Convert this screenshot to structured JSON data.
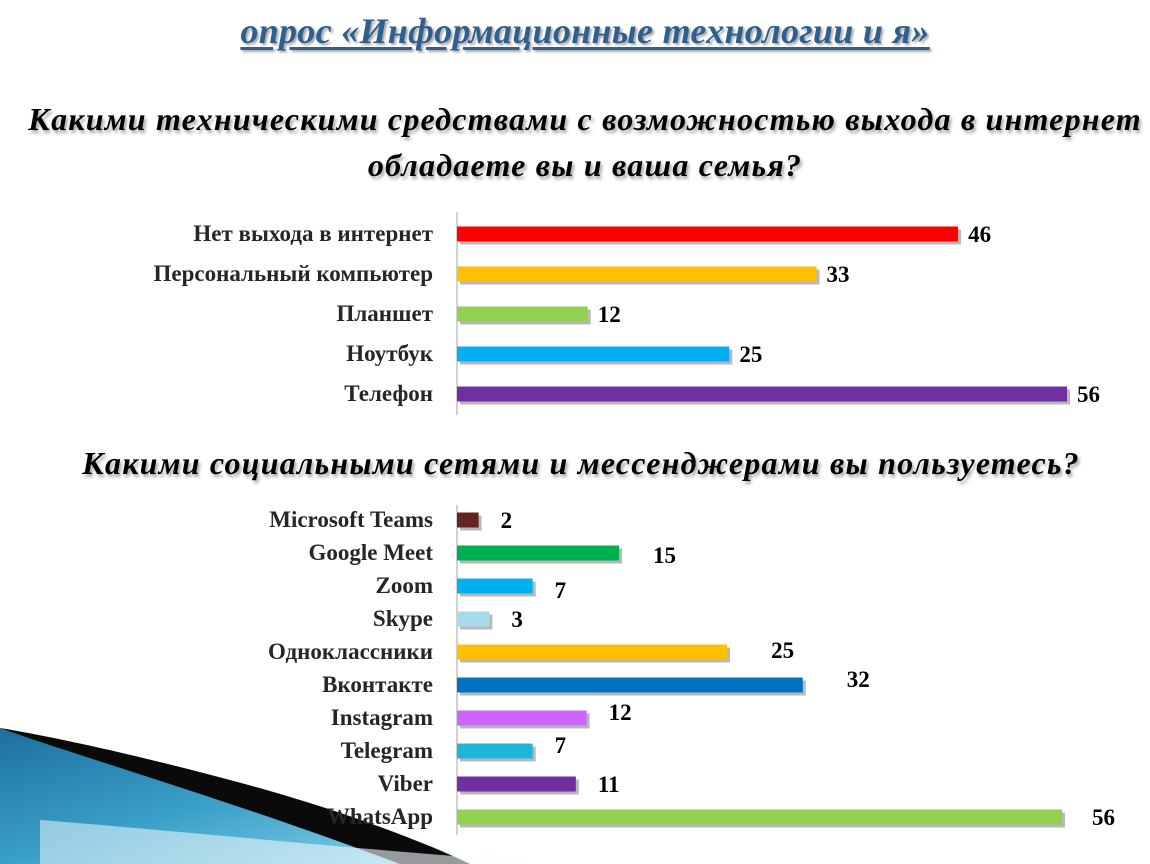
{
  "header": {
    "title": "опрос «Информационные технологии и я»",
    "question1": "Какими техническими средствами с возможностью выхода в интернет обладаете вы и ваша семья?",
    "question2": "Какими социальными сетями и мессенджерами вы пользуетесь?"
  },
  "chart_data": [
    {
      "type": "bar",
      "orientation": "horizontal",
      "categories": [
        "Нет выхода в интернет",
        "Персональный компьютер",
        "Планшет",
        "Ноутбук",
        "Телефон"
      ],
      "values": [
        46,
        33,
        12,
        25,
        56
      ],
      "colors": [
        "#ff0000",
        "#ffc000",
        "#92d050",
        "#00b0f0",
        "#7030a0"
      ],
      "xlim": [
        0,
        56
      ],
      "grid": false,
      "data_labels": true
    },
    {
      "type": "bar",
      "orientation": "horizontal",
      "categories": [
        "Microsoft Teams",
        "Google Meet",
        "Zoom",
        "Skype",
        "Одноклассники",
        "Вконтакте",
        "Instagram",
        "Telegram",
        "Viber",
        "WhatsApp"
      ],
      "values": [
        2,
        15,
        7,
        3,
        25,
        32,
        12,
        7,
        11,
        56
      ],
      "colors": [
        "#632523",
        "#00b050",
        "#00b0f0",
        "#a6dbeb",
        "#ffc000",
        "#0070c0",
        "#cc66ff",
        "#1fb5d8",
        "#7030a0",
        "#92d050"
      ],
      "xlim": [
        0,
        56
      ],
      "grid": false,
      "data_labels": true
    }
  ]
}
